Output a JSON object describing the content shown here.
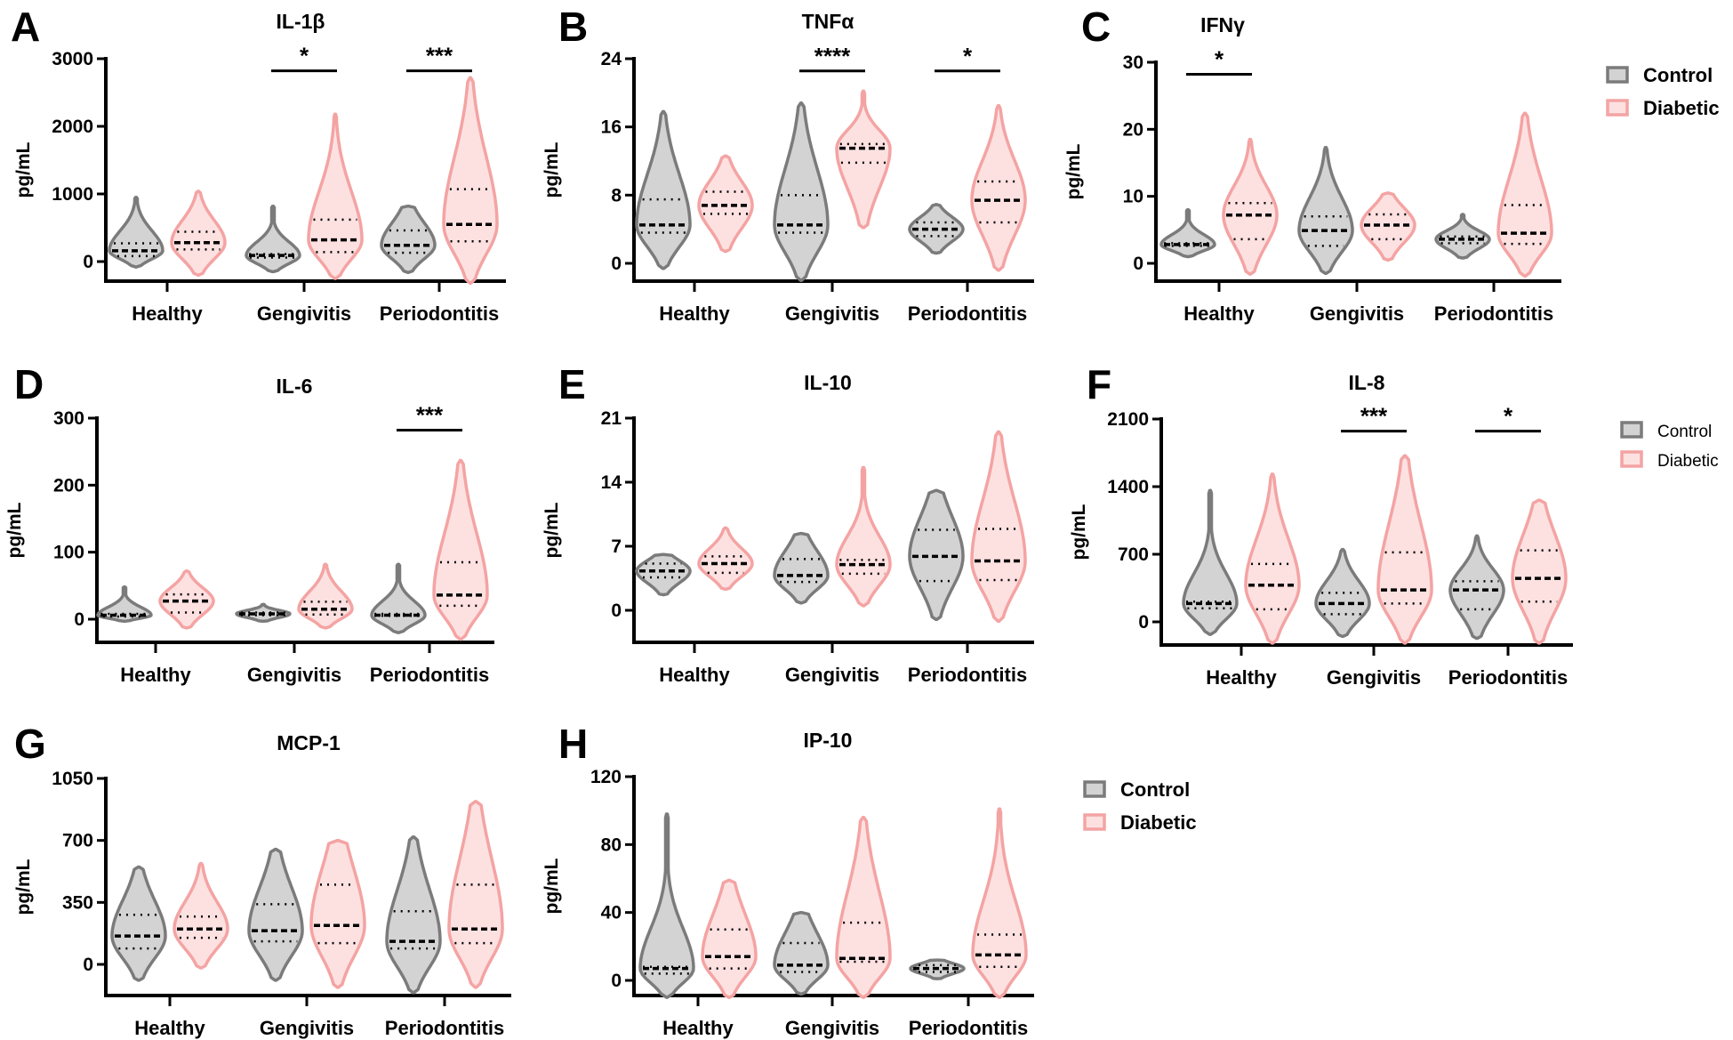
{
  "colors": {
    "control_stroke": "#7b7b7b",
    "control_fill": "#d3d3d3",
    "diabetic_stroke": "#f4a3a3",
    "diabetic_fill": "#fde1e1"
  },
  "legends": [
    {
      "items": [
        "Control",
        "Diabetic"
      ]
    },
    {
      "items": [
        "Control",
        "Diabetic"
      ]
    },
    {
      "items": [
        "Control",
        "Diabetic"
      ]
    }
  ],
  "chart_data": [
    {
      "type": "violin",
      "letter": "A",
      "title": "IL-1β",
      "ylabel": "pg/mL",
      "yticks": [
        0,
        1000,
        2000,
        3000
      ],
      "ylim": [
        -290,
        3000
      ],
      "categories": [
        "Healthy",
        "Gengivitis",
        "Periodontitis"
      ],
      "series_names": [
        "Control",
        "Diabetic"
      ],
      "violins": [
        [
          {
            "median": 160,
            "q1": 80,
            "q3": 270,
            "min": -80,
            "max": 950
          },
          {
            "median": 280,
            "q1": 180,
            "q3": 440,
            "min": -200,
            "max": 1040
          }
        ],
        [
          {
            "median": 90,
            "q1": 60,
            "q3": 110,
            "min": -150,
            "max": 820
          },
          {
            "median": 320,
            "q1": 140,
            "q3": 620,
            "min": -250,
            "max": 2180
          }
        ],
        [
          {
            "median": 240,
            "q1": 130,
            "q3": 460,
            "min": -160,
            "max": 820
          },
          {
            "median": 550,
            "q1": 300,
            "q3": 1070,
            "min": -320,
            "max": 2720
          }
        ]
      ],
      "significance": [
        "",
        "*",
        "***"
      ]
    },
    {
      "type": "violin",
      "letter": "B",
      "title": "TNFα",
      "ylabel": "pg/mL",
      "yticks": [
        0,
        8,
        16,
        24
      ],
      "ylim": [
        -2,
        24
      ],
      "categories": [
        "Healthy",
        "Gengivitis",
        "Periodontitis"
      ],
      "series_names": [
        "Control",
        "Diabetic"
      ],
      "violins": [
        [
          {
            "median": 4.5,
            "q1": 3.6,
            "q3": 7.5,
            "min": -0.6,
            "max": 17.8
          },
          {
            "median": 6.8,
            "q1": 5.8,
            "q3": 8.4,
            "min": 1.4,
            "max": 12.6
          }
        ],
        [
          {
            "median": 4.5,
            "q1": 3.6,
            "q3": 8,
            "min": -2,
            "max": 18.8
          },
          {
            "median": 13.5,
            "q1": 11.8,
            "q3": 14,
            "min": 4.2,
            "max": 20.2
          }
        ],
        [
          {
            "median": 4,
            "q1": 3.2,
            "q3": 4.8,
            "min": 1.2,
            "max": 6.9
          },
          {
            "median": 7.4,
            "q1": 4.8,
            "q3": 9.6,
            "min": -0.8,
            "max": 18.5
          }
        ]
      ],
      "significance": [
        "",
        "****",
        "*"
      ]
    },
    {
      "type": "violin",
      "letter": "C",
      "title": "IFNγ",
      "ylabel": "pg/mL",
      "yticks": [
        0,
        10,
        20,
        30
      ],
      "ylim": [
        -3,
        30
      ],
      "categories": [
        "Healthy",
        "Gengivitis",
        "Periodontitis"
      ],
      "series_names": [
        "Control",
        "Diabetic"
      ],
      "violins": [
        [
          {
            "median": 2.8,
            "q1": 2.6,
            "q3": 3,
            "min": 1,
            "max": 8
          },
          {
            "median": 7.2,
            "q1": 3.6,
            "q3": 9,
            "min": -1.6,
            "max": 18.5
          }
        ],
        [
          {
            "median": 4.9,
            "q1": 2.6,
            "q3": 7,
            "min": -1.5,
            "max": 17.3
          },
          {
            "median": 5.7,
            "q1": 3.6,
            "q3": 7.3,
            "min": 0.5,
            "max": 10.5
          }
        ],
        [
          {
            "median": 3.6,
            "q1": 3,
            "q3": 4,
            "min": 0.8,
            "max": 7.3
          },
          {
            "median": 4.5,
            "q1": 2.9,
            "q3": 8.7,
            "min": -1.9,
            "max": 22.4
          }
        ]
      ],
      "significance": [
        "*",
        "",
        ""
      ]
    },
    {
      "type": "violin",
      "letter": "D",
      "title": "IL-6",
      "ylabel": "pg/mL",
      "yticks": [
        0,
        100,
        200,
        300
      ],
      "ylim": [
        -30,
        300
      ],
      "categories": [
        "Healthy",
        "Gengivitis",
        "Periodontitis"
      ],
      "series_names": [
        "Control",
        "Diabetic"
      ],
      "violins": [
        [
          {
            "median": 6,
            "q1": 4,
            "q3": 8,
            "min": -3,
            "max": 48
          },
          {
            "median": 27,
            "q1": 10,
            "q3": 37,
            "min": -13,
            "max": 72
          }
        ],
        [
          {
            "median": 8,
            "q1": 6,
            "q3": 10,
            "min": -3,
            "max": 22
          },
          {
            "median": 15,
            "q1": 7,
            "q3": 26,
            "min": -13,
            "max": 82
          }
        ],
        [
          {
            "median": 6,
            "q1": 5,
            "q3": 8,
            "min": -20,
            "max": 82
          },
          {
            "median": 36,
            "q1": 20,
            "q3": 85,
            "min": -30,
            "max": 237
          }
        ]
      ],
      "significance": [
        "",
        "",
        "***"
      ]
    },
    {
      "type": "violin",
      "letter": "E",
      "title": "IL-10",
      "ylabel": "pg/mL",
      "yticks": [
        0,
        7,
        14,
        21
      ],
      "ylim": [
        -3,
        21
      ],
      "categories": [
        "Healthy",
        "Gengivitis",
        "Periodontitis"
      ],
      "series_names": [
        "Control",
        "Diabetic"
      ],
      "violins": [
        [
          {
            "median": 4.3,
            "q1": 3.6,
            "q3": 5.1,
            "min": 1.7,
            "max": 6.1
          },
          {
            "median": 5.1,
            "q1": 4.1,
            "q3": 5.9,
            "min": 2.3,
            "max": 9
          }
        ],
        [
          {
            "median": 3.8,
            "q1": 3.1,
            "q3": 5.6,
            "min": 0.8,
            "max": 8.4
          },
          {
            "median": 5,
            "q1": 4,
            "q3": 5.5,
            "min": 0.5,
            "max": 15.6
          }
        ],
        [
          {
            "median": 5.9,
            "q1": 3.2,
            "q3": 8.8,
            "min": -1,
            "max": 13.1
          },
          {
            "median": 5.4,
            "q1": 3.3,
            "q3": 8.9,
            "min": -1.2,
            "max": 19.5
          }
        ]
      ],
      "significance": [
        "",
        "",
        ""
      ]
    },
    {
      "type": "violin",
      "letter": "F",
      "title": "IL-8",
      "ylabel": "pg/mL",
      "yticks": [
        0,
        700,
        1400,
        2100
      ],
      "ylim": [
        -220,
        2100
      ],
      "categories": [
        "Healthy",
        "Gengivitis",
        "Periodontitis"
      ],
      "series_names": [
        "Control",
        "Diabetic"
      ],
      "violins": [
        [
          {
            "median": 190,
            "q1": 140,
            "q3": 210,
            "min": -130,
            "max": 1360
          },
          {
            "median": 380,
            "q1": 130,
            "q3": 600,
            "min": -220,
            "max": 1530
          }
        ],
        [
          {
            "median": 190,
            "q1": 80,
            "q3": 300,
            "min": -150,
            "max": 750
          },
          {
            "median": 330,
            "q1": 190,
            "q3": 720,
            "min": -220,
            "max": 1720
          }
        ],
        [
          {
            "median": 330,
            "q1": 130,
            "q3": 420,
            "min": -170,
            "max": 890
          },
          {
            "median": 450,
            "q1": 210,
            "q3": 740,
            "min": -220,
            "max": 1260
          }
        ]
      ],
      "significance": [
        "",
        "***",
        "*"
      ]
    },
    {
      "type": "violin",
      "letter": "G",
      "title": "MCP-1",
      "ylabel": "pg/mL",
      "yticks": [
        0,
        350,
        700,
        1050
      ],
      "ylim": [
        -180,
        1050
      ],
      "categories": [
        "Healthy",
        "Gengivitis",
        "Periodontitis"
      ],
      "series_names": [
        "Control",
        "Diabetic"
      ],
      "violins": [
        [
          {
            "median": 160,
            "q1": 90,
            "q3": 280,
            "min": -90,
            "max": 550
          },
          {
            "median": 200,
            "q1": 150,
            "q3": 270,
            "min": -20,
            "max": 570
          }
        ],
        [
          {
            "median": 190,
            "q1": 130,
            "q3": 340,
            "min": -90,
            "max": 650
          },
          {
            "median": 220,
            "q1": 120,
            "q3": 450,
            "min": -130,
            "max": 700
          }
        ],
        [
          {
            "median": 130,
            "q1": 90,
            "q3": 300,
            "min": -160,
            "max": 720
          },
          {
            "median": 200,
            "q1": 120,
            "q3": 450,
            "min": -130,
            "max": 920
          }
        ]
      ],
      "significance": [
        "",
        "",
        ""
      ]
    },
    {
      "type": "violin",
      "letter": "H",
      "title": "IP-10",
      "ylabel": "pg/mL",
      "yticks": [
        0,
        40,
        80,
        120
      ],
      "ylim": [
        -10,
        120
      ],
      "categories": [
        "Healthy",
        "Gengivitis",
        "Periodontitis"
      ],
      "series_names": [
        "Control",
        "Diabetic"
      ],
      "violins": [
        [
          {
            "median": 7,
            "q1": 4,
            "q3": 8,
            "min": -10,
            "max": 98
          },
          {
            "median": 14,
            "q1": 7,
            "q3": 30,
            "min": -10,
            "max": 59
          }
        ],
        [
          {
            "median": 9,
            "q1": 5,
            "q3": 22,
            "min": -8,
            "max": 40
          },
          {
            "median": 13,
            "q1": 11,
            "q3": 34,
            "min": -10,
            "max": 96
          }
        ],
        [
          {
            "median": 7,
            "q1": 5,
            "q3": 9,
            "min": 1,
            "max": 12
          },
          {
            "median": 15,
            "q1": 8,
            "q3": 27,
            "min": -10,
            "max": 101
          }
        ]
      ],
      "significance": [
        "",
        "",
        ""
      ]
    }
  ]
}
